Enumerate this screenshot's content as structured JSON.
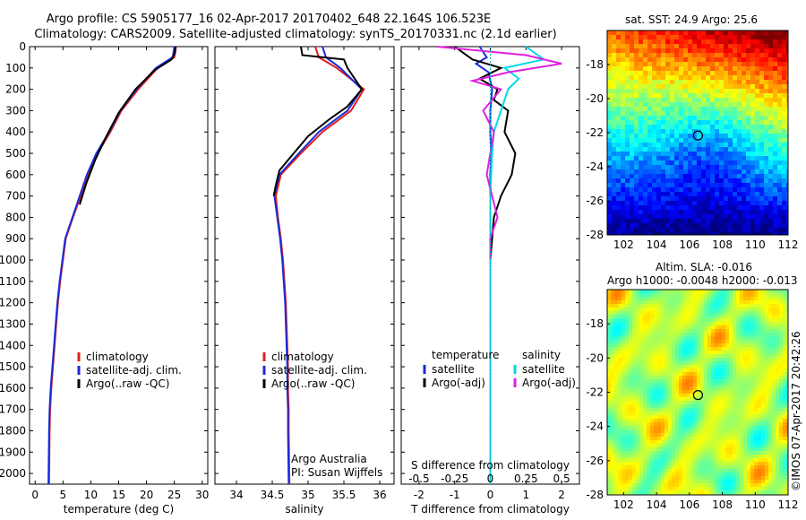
{
  "header": {
    "line1": "Argo profile: CS 5905177_16 02-Apr-2017 20170402_648 22.164S 106.523E",
    "line2": "Climatology: CARS2009. Satellite-adjusted climatology: synTS_20170331.nc (2.1d earlier)"
  },
  "credit": "©IMOS 07-Apr-2017 20:42:26",
  "colors": {
    "climatology": "#e0201c",
    "satellite": "#1a2bd8",
    "argo": "#000000",
    "sat_salinity": "#00d8e8",
    "argo_salinity_adj": "#e020e0"
  },
  "chart_data": [
    {
      "type": "line",
      "id": "temperature",
      "xlabel": "temperature (deg C)",
      "ylabel": "",
      "xlim": [
        -1,
        31
      ],
      "ylim": [
        2050,
        0
      ],
      "xticks": [
        0,
        5,
        10,
        15,
        20,
        25,
        30
      ],
      "yticks": [
        0,
        100,
        200,
        300,
        400,
        500,
        600,
        700,
        800,
        900,
        1000,
        1100,
        1200,
        1300,
        1400,
        1500,
        1600,
        1700,
        1800,
        1900,
        2000
      ],
      "legend": [
        "climatology",
        "satellite-adj. clim.",
        "Argo(..raw -QC)"
      ],
      "series": [
        {
          "name": "climatology",
          "color": "#e0201c",
          "x": [
            25.3,
            25.0,
            22.0,
            18.5,
            15.5,
            13.5,
            11.2,
            9.5,
            8.2,
            6.8,
            5.5,
            5.0,
            4.5,
            4.1,
            3.8,
            3.5,
            3.2,
            2.9,
            2.7,
            2.6,
            2.5
          ],
          "y": [
            0,
            50,
            100,
            200,
            300,
            400,
            500,
            600,
            700,
            800,
            900,
            1000,
            1100,
            1200,
            1300,
            1400,
            1500,
            1600,
            1700,
            1800,
            2050
          ]
        },
        {
          "name": "satellite-adj. clim.",
          "color": "#1a2bd8",
          "x": [
            25.0,
            24.7,
            21.7,
            18.2,
            15.3,
            13.3,
            11.0,
            9.3,
            8.0,
            6.7,
            5.4,
            4.9,
            4.4,
            4.0,
            3.7,
            3.4,
            3.1,
            2.8,
            2.6,
            2.5,
            2.4
          ],
          "y": [
            0,
            50,
            100,
            200,
            300,
            400,
            500,
            600,
            700,
            800,
            900,
            1000,
            1100,
            1200,
            1300,
            1400,
            1500,
            1600,
            1700,
            1800,
            2050
          ]
        },
        {
          "name": "Argo(..raw -QC)",
          "color": "#000000",
          "x": [
            25.2,
            25.1,
            24.5,
            21.5,
            18.0,
            15.0,
            12.8,
            10.8,
            9.2,
            8.0
          ],
          "y": [
            0,
            30,
            60,
            110,
            200,
            310,
            420,
            530,
            640,
            740
          ]
        }
      ]
    },
    {
      "type": "line",
      "id": "salinity",
      "xlabel": "salinity",
      "ylabel": "",
      "xlim": [
        33.7,
        36.2
      ],
      "ylim": [
        2050,
        0
      ],
      "xticks": [
        34,
        34.5,
        35,
        35.5,
        36
      ],
      "legend": [
        "climatology",
        "satellite-adj. clim.",
        "Argo(..raw -QC)"
      ],
      "annotation": [
        "Argo Australia",
        "PI: Susan Wijffels"
      ],
      "series": [
        {
          "name": "climatology",
          "color": "#e0201c",
          "x": [
            35.1,
            35.15,
            35.4,
            35.78,
            35.6,
            35.2,
            34.9,
            34.62,
            34.55,
            34.58,
            34.62,
            34.65,
            34.67,
            34.69,
            34.7,
            34.71,
            34.72,
            34.72,
            34.73,
            34.73,
            34.74
          ],
          "y": [
            0,
            50,
            100,
            200,
            300,
            400,
            500,
            600,
            700,
            800,
            900,
            1000,
            1100,
            1200,
            1300,
            1400,
            1500,
            1600,
            1700,
            1800,
            2050
          ]
        },
        {
          "name": "satellite-adj. clim.",
          "color": "#1a2bd8",
          "x": [
            35.2,
            35.25,
            35.45,
            35.75,
            35.55,
            35.15,
            34.87,
            34.6,
            34.53,
            34.57,
            34.61,
            34.64,
            34.66,
            34.68,
            34.69,
            34.7,
            34.71,
            34.71,
            34.72,
            34.72,
            34.73
          ],
          "y": [
            0,
            50,
            100,
            200,
            300,
            400,
            500,
            600,
            700,
            800,
            900,
            1000,
            1100,
            1200,
            1300,
            1400,
            1500,
            1600,
            1700,
            1800,
            2050
          ]
        },
        {
          "name": "Argo(..raw -QC)",
          "color": "#000000",
          "x": [
            34.9,
            34.92,
            35.5,
            35.55,
            35.75,
            35.55,
            35.3,
            35.0,
            34.8,
            34.6,
            34.55,
            34.52
          ],
          "y": [
            0,
            40,
            60,
            100,
            200,
            280,
            340,
            420,
            500,
            580,
            650,
            700
          ]
        }
      ]
    },
    {
      "type": "line",
      "id": "difference",
      "xlabel": "T difference from climatology",
      "xlabel_top": "S difference from climatology",
      "ylabel": "",
      "xlim": [
        -2.5,
        2.5
      ],
      "ylim": [
        2050,
        0
      ],
      "xticks": [
        -2,
        -1,
        0,
        1,
        2
      ],
      "xticks_top": [
        "-0.5",
        "-0.25",
        "0",
        "0.25",
        "0.5"
      ],
      "legend_temperature_title": "temperature",
      "legend_salinity_title": "salinity",
      "legend": [
        "satellite",
        "Argo(-adj)",
        "satellite",
        "Argo(-adj)"
      ],
      "series": [
        {
          "name": "satellite",
          "color": "#1a2bd8",
          "x": [
            -0.3,
            -0.1,
            -0.4,
            -0.05,
            0.05,
            0.0,
            0.0,
            0.02,
            0.0,
            0.0,
            0.0,
            0.0,
            0.0,
            0.0,
            0.0,
            0.0,
            0.0
          ],
          "y": [
            0,
            50,
            80,
            120,
            200,
            300,
            400,
            500,
            600,
            700,
            800,
            1000,
            1200,
            1400,
            1600,
            1800,
            2050
          ]
        },
        {
          "name": "Argo(-adj)",
          "color": "#000000",
          "x": [
            -1.0,
            -0.5,
            0.3,
            -0.3,
            0.2,
            0.1,
            0.5,
            0.4,
            0.7,
            0.6,
            0.3,
            0.1,
            0.0,
            0.0,
            0.0,
            0.0
          ],
          "y": [
            0,
            60,
            100,
            150,
            200,
            250,
            300,
            400,
            500,
            600,
            700,
            800,
            1000,
            1200,
            1400,
            1500
          ]
        },
        {
          "name": "satellite",
          "color": "#00d8e8",
          "x": [
            1.0,
            1.5,
            0.4,
            0.8,
            0.5,
            0.3,
            0.1,
            0.05,
            0.0,
            0.0,
            0.0,
            0.0
          ],
          "y": [
            0,
            60,
            100,
            150,
            200,
            300,
            400,
            500,
            700,
            900,
            1200,
            2050
          ]
        },
        {
          "name": "Argo(-adj)",
          "color": "#e020e0",
          "x": [
            -1.5,
            1.0,
            2.0,
            0.5,
            -0.5,
            0.3,
            -0.2,
            0.1,
            -0.1,
            0.2,
            0.0,
            0.0
          ],
          "y": [
            0,
            40,
            80,
            120,
            160,
            200,
            300,
            400,
            600,
            800,
            900,
            1000
          ]
        }
      ]
    },
    {
      "type": "heatmap",
      "id": "sst-map",
      "title": "sat. SST: 24.9 Argo: 25.6",
      "xlim": [
        101,
        112
      ],
      "ylim": [
        -28,
        -16
      ],
      "xticks": [
        102,
        104,
        106,
        108,
        110,
        112
      ],
      "yticks": [
        -18,
        -20,
        -22,
        -24,
        -26,
        -28
      ],
      "marker": {
        "lon": 106.523,
        "lat": -22.164
      },
      "colormap": "jet"
    },
    {
      "type": "heatmap",
      "id": "sla-map",
      "title": "Altim. SLA: -0.016",
      "subtitle": "Argo h1000: -0.0048 h2000: -0.013",
      "xlim": [
        101,
        112
      ],
      "ylim": [
        -28,
        -16
      ],
      "xticks": [
        102,
        104,
        106,
        108,
        110,
        112
      ],
      "yticks": [
        -18,
        -20,
        -22,
        -24,
        -26,
        -28
      ],
      "marker": {
        "lon": 106.523,
        "lat": -22.164
      },
      "colormap": "jet"
    }
  ]
}
